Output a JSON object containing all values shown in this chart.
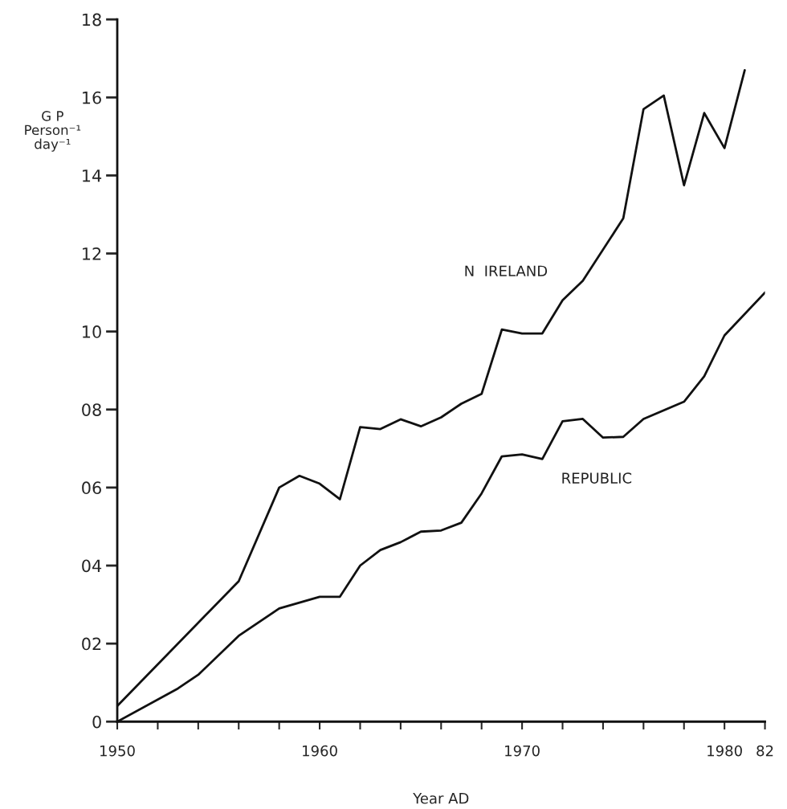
{
  "chart_data": {
    "type": "line",
    "xlabel": "Year AD",
    "ylabel": "G P\nPerson⁻¹\nday⁻¹",
    "xlim": [
      1950,
      1982
    ],
    "ylim": [
      0,
      18
    ],
    "xticks": [
      {
        "value": 1950,
        "label": "1950"
      },
      {
        "value": 1952,
        "label": null
      },
      {
        "value": 1954,
        "label": null
      },
      {
        "value": 1956,
        "label": null
      },
      {
        "value": 1958,
        "label": null
      },
      {
        "value": 1960,
        "label": "1960"
      },
      {
        "value": 1962,
        "label": null
      },
      {
        "value": 1964,
        "label": null
      },
      {
        "value": 1966,
        "label": null
      },
      {
        "value": 1968,
        "label": null
      },
      {
        "value": 1970,
        "label": "1970"
      },
      {
        "value": 1972,
        "label": null
      },
      {
        "value": 1974,
        "label": null
      },
      {
        "value": 1976,
        "label": null
      },
      {
        "value": 1978,
        "label": null
      },
      {
        "value": 1980,
        "label": "1980"
      },
      {
        "value": 1982,
        "label": "82"
      }
    ],
    "yticks": [
      0,
      {
        "value": 2,
        "label": "02"
      },
      {
        "value": 4,
        "label": "04"
      },
      {
        "value": 6,
        "label": "06"
      },
      {
        "value": 8,
        "label": "08"
      },
      10,
      12,
      14,
      16,
      18
    ],
    "grid": false,
    "legend": false,
    "marker": "none",
    "line_style": "solid",
    "series": [
      {
        "name": "N  IRELAND",
        "color": "#111111",
        "x": [
          1950,
          1956,
          1958,
          1959,
          1960,
          1961,
          1962,
          1963,
          1964,
          1965,
          1966,
          1967,
          1968,
          1969,
          1970,
          1971,
          1972,
          1973,
          1975,
          1976,
          1977,
          1978,
          1979,
          1980,
          1981
        ],
        "values": [
          0.4,
          3.6,
          6.0,
          6.3,
          6.1,
          5.7,
          7.55,
          7.5,
          7.75,
          7.57,
          7.8,
          8.15,
          8.4,
          10.05,
          9.95,
          9.95,
          10.8,
          11.3,
          12.9,
          15.7,
          16.05,
          13.75,
          15.6,
          14.7,
          16.7
        ]
      },
      {
        "name": "REPUBLIC",
        "color": "#111111",
        "x": [
          1950,
          1953,
          1954,
          1956,
          1958,
          1960,
          1961,
          1962,
          1963,
          1964,
          1965,
          1966,
          1967,
          1968,
          1969,
          1970,
          1971,
          1972,
          1973,
          1974,
          1975,
          1976,
          1978,
          1979,
          1980,
          1982
        ],
        "values": [
          0.0,
          0.85,
          1.2,
          2.2,
          2.9,
          3.2,
          3.2,
          4.0,
          4.4,
          4.6,
          4.87,
          4.9,
          5.1,
          5.85,
          6.8,
          6.85,
          6.73,
          7.7,
          7.76,
          7.28,
          7.3,
          7.76,
          8.2,
          8.85,
          9.9,
          11.0
        ]
      }
    ]
  }
}
